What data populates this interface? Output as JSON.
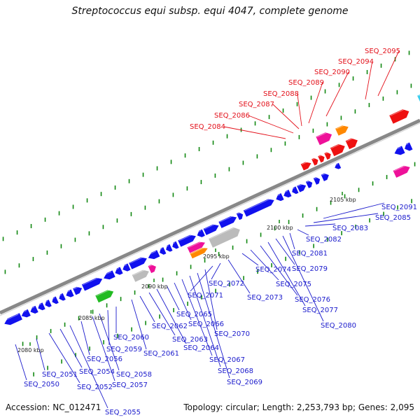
{
  "title": "Streptococcus equi subsp. equi 4047, complete genome",
  "footer": {
    "accession": "Accession: NC_012471",
    "summary": "Topology: circular; Length: 2,253,793 bp; Genes: 2,095"
  },
  "colors": {
    "backbone": "#888888",
    "blue_gene": "#1111ee",
    "red_gene": "#ee1111",
    "magenta_gene": "#ee1199",
    "orange_gene": "#ff8800",
    "green_gene": "#22bb22",
    "grey_gene": "#bbbbbb",
    "cyan_gene": "#33ccee",
    "tick": "#118811",
    "red_label": "#e3101a",
    "blue_label": "#1a1acc"
  },
  "scale_ticks": [
    "2080 kbp",
    "2085 kbp",
    "2090 kbp",
    "2095 kbp",
    "2100 kbp",
    "2105 kbp"
  ],
  "red_labels": [
    "SEQ_2084",
    "SEQ_2086",
    "SEQ_2087",
    "SEQ_2088",
    "SEQ_2089",
    "SEQ_2090",
    "SEQ_2094",
    "SEQ_2095"
  ],
  "blue_labels": [
    "SEQ_2050",
    "SEQ_2051",
    "SEQ_2052",
    "SEQ_2054",
    "SEQ_2055",
    "SEQ_2056",
    "SEQ_2057",
    "SEQ_2058",
    "SEQ_2059",
    "SEQ_2060",
    "SEQ_2061",
    "SEQ_2062",
    "SEQ_2063",
    "SEQ_2064",
    "SEQ_2065",
    "SEQ_2066",
    "SEQ_2067",
    "SEQ_2068",
    "SEQ_2069",
    "SEQ_2070",
    "SEQ_2071",
    "SEQ_2072",
    "SEQ_2073",
    "SEQ_2074",
    "SEQ_2075",
    "SEQ_2076",
    "SEQ_2077",
    "SEQ_2079",
    "SEQ_2080",
    "SEQ_2081",
    "SEQ_2082",
    "SEQ_2083",
    "SEQ_2085",
    "SEQ_2091"
  ]
}
